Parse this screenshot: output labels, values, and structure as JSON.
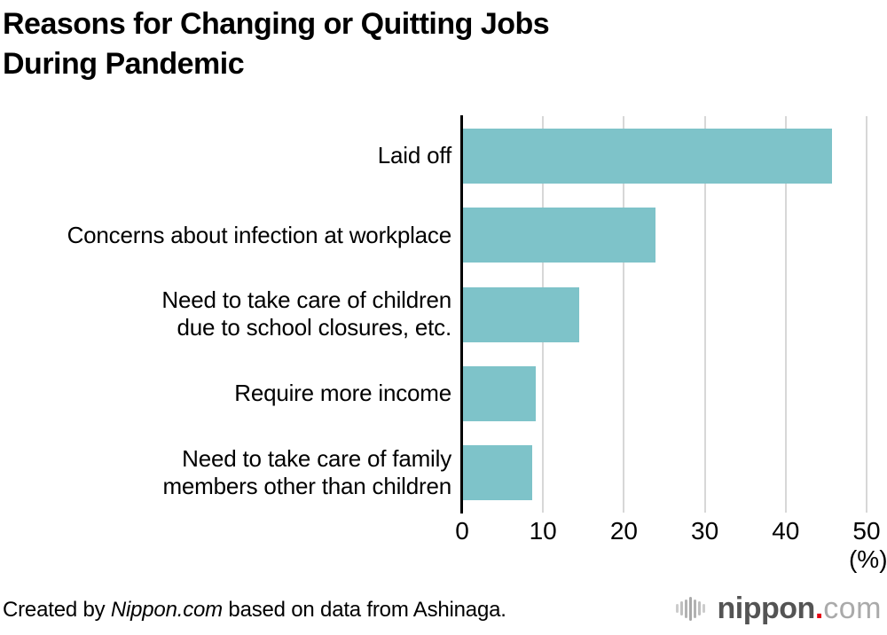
{
  "title": {
    "line1": "Reasons for Changing or Quitting Jobs",
    "line2": "During Pandemic"
  },
  "chart_data": {
    "type": "bar",
    "orientation": "horizontal",
    "title": "Reasons for Changing or Quitting Jobs During Pandemic",
    "categories": [
      "Laid off",
      "Concerns about infection at workplace",
      "Need to take care of children\ndue to school closures, etc.",
      "Require more income",
      "Need to take care of family\nmembers other than children"
    ],
    "values": [
      45.6,
      23.8,
      14.4,
      9.0,
      8.5
    ],
    "xlabel": "(%)",
    "xlim": [
      0,
      50
    ],
    "xticks": [
      0,
      10,
      20,
      30,
      40,
      50
    ],
    "xtick_labels": [
      "0",
      "10",
      "20",
      "30",
      "40",
      "50"
    ],
    "grid": true,
    "legend": false,
    "bar_color": "#7ec3c9",
    "gridline_color": "#d7d7d7",
    "axis_color": "#000000"
  },
  "footer": {
    "credit_prefix": "Created by ",
    "credit_source_italic": "Nippon.com",
    "credit_suffix": " based on data from Ashinaga.",
    "logo": {
      "text_bold": "nippon",
      "dot": ".",
      "text_light": "com",
      "color_bold": "#545454",
      "color_dot": "#e60012",
      "color_light": "#aaaaaa",
      "icon_bar_heights": [
        10,
        16,
        21,
        27,
        21,
        16,
        10
      ],
      "icon_bar_colors": [
        "#cccccc",
        "#bfbfbf",
        "#b2b2b2",
        "#a8a8a8",
        "#b2b2b2",
        "#bfbfbf",
        "#cccccc"
      ]
    }
  }
}
